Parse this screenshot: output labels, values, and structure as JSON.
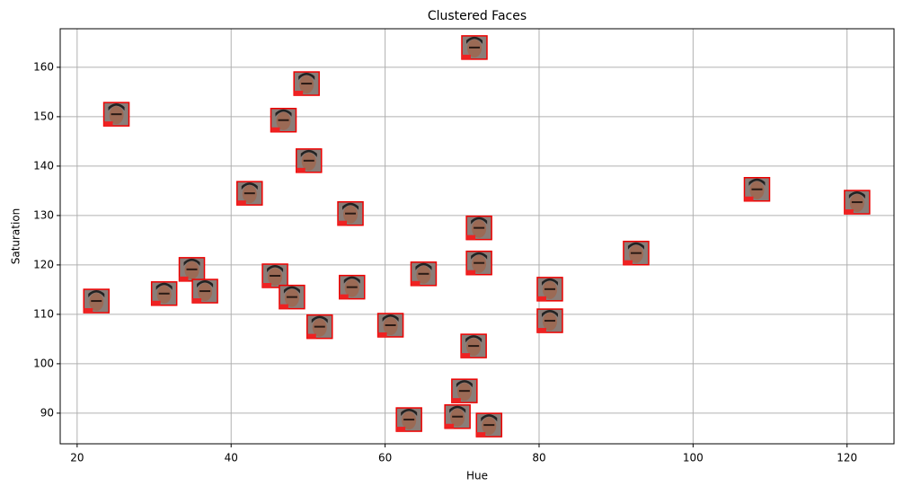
{
  "chart_data": {
    "type": "scatter",
    "title": "Clustered Faces",
    "x_label": "Hue",
    "y_label": "Saturation",
    "x": [
      71.6,
      49.8,
      25.1,
      46.8,
      50.1,
      42.4,
      55.5,
      108.3,
      121.3,
      72.2,
      92.6,
      72.2,
      34.9,
      45.7,
      65.0,
      22.5,
      31.3,
      36.6,
      47.9,
      55.7,
      81.4,
      81.4,
      51.5,
      60.7,
      71.5,
      70.3,
      63.1,
      69.4,
      73.5
    ],
    "values": [
      164.0,
      156.7,
      150.5,
      149.3,
      141.1,
      134.5,
      130.4,
      135.3,
      132.7,
      127.5,
      122.4,
      120.4,
      119.1,
      117.8,
      118.2,
      112.7,
      114.2,
      114.7,
      113.5,
      115.5,
      115.1,
      108.7,
      107.5,
      107.8,
      103.6,
      94.5,
      88.7,
      89.3,
      87.6
    ],
    "xlim": [
      17.8,
      126.1
    ],
    "ylim": [
      83.8,
      167.8
    ],
    "xticks": [
      20,
      40,
      60,
      80,
      100,
      120
    ],
    "yticks": [
      90,
      100,
      110,
      120,
      130,
      140,
      150,
      160
    ],
    "grid": true
  }
}
